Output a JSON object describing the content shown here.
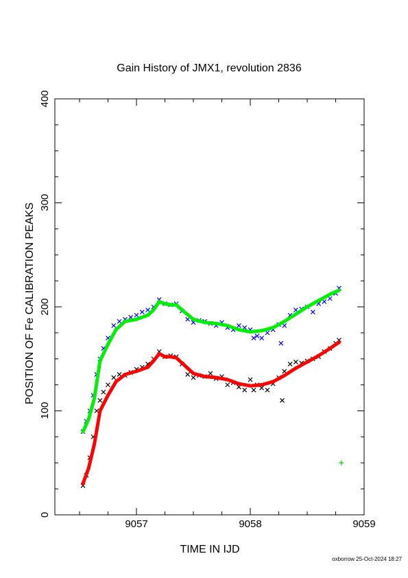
{
  "chart_data": {
    "type": "scatter",
    "title": "Gain History of JMX1, revolution 2836",
    "xlabel": "TIME IN IJD",
    "ylabel": "POSITION OF Fe CALIBRATION PEAKS",
    "xlim": [
      9056.5,
      9059
    ],
    "ylim": [
      0,
      400
    ],
    "xticks": [
      9057,
      9058,
      9059
    ],
    "xtick_labels": [
      "9057",
      "9058",
      "9059"
    ],
    "yticks": [
      0,
      100,
      200,
      300,
      400
    ],
    "ytick_labels": [
      "0",
      "100",
      "200",
      "300",
      "400"
    ],
    "grid": false,
    "legend": "none",
    "footer": "oxborrow 25-Oct-2024 18:27",
    "series": [
      {
        "marker": "x",
        "color": "#0000ff",
        "kind": "points",
        "x": [
          9056.53,
          9056.56,
          9056.59,
          9056.62,
          9056.65,
          9056.68,
          9056.71,
          9056.75,
          9056.8,
          9056.85,
          9056.9,
          9056.95,
          9057.0,
          9057.05,
          9057.1,
          9057.15,
          9057.2,
          9057.25,
          9057.3,
          9057.35,
          9057.4,
          9057.45,
          9057.5,
          9057.55,
          9057.6,
          9057.65,
          9057.7,
          9057.75,
          9057.8,
          9057.85,
          9057.9,
          9057.95,
          9058.0,
          9058.03,
          9058.06,
          9058.1,
          9058.15,
          9058.2,
          9058.25,
          9058.27,
          9058.3,
          9058.35,
          9058.4,
          9058.45,
          9058.5,
          9058.55,
          9058.6,
          9058.65,
          9058.7,
          9058.75,
          9058.78
        ],
        "y": [
          80,
          90,
          100,
          115,
          135,
          150,
          160,
          170,
          182,
          186,
          188,
          190,
          192,
          195,
          197,
          200,
          207,
          203,
          202,
          203,
          196,
          188,
          185,
          187,
          186,
          184,
          182,
          185,
          180,
          178,
          182,
          180,
          178,
          170,
          172,
          170,
          175,
          178,
          183,
          165,
          182,
          192,
          197,
          198,
          200,
          195,
          203,
          205,
          208,
          213,
          218
        ]
      },
      {
        "marker": "x",
        "color": "#000000",
        "kind": "points",
        "x": [
          9056.53,
          9056.56,
          9056.59,
          9056.62,
          9056.65,
          9056.68,
          9056.71,
          9056.75,
          9056.8,
          9056.85,
          9056.9,
          9056.95,
          9057.0,
          9057.05,
          9057.1,
          9057.15,
          9057.2,
          9057.25,
          9057.3,
          9057.35,
          9057.4,
          9057.45,
          9057.5,
          9057.55,
          9057.6,
          9057.65,
          9057.7,
          9057.75,
          9057.8,
          9057.85,
          9057.9,
          9057.95,
          9058.0,
          9058.03,
          9058.06,
          9058.1,
          9058.15,
          9058.2,
          9058.25,
          9058.28,
          9058.3,
          9058.35,
          9058.4,
          9058.45,
          9058.5,
          9058.55,
          9058.6,
          9058.65,
          9058.7,
          9058.75,
          9058.78
        ],
        "y": [
          28,
          38,
          55,
          75,
          100,
          110,
          118,
          125,
          132,
          135,
          134,
          137,
          140,
          142,
          145,
          150,
          157,
          152,
          153,
          152,
          145,
          135,
          132,
          134,
          133,
          136,
          131,
          133,
          125,
          127,
          123,
          120,
          130,
          120,
          125,
          122,
          120,
          126,
          132,
          110,
          138,
          145,
          147,
          146,
          148,
          150,
          152,
          157,
          160,
          165,
          168
        ]
      },
      {
        "marker": "curve",
        "color": "#00ee00",
        "kind": "fit",
        "x": [
          9056.53,
          9056.58,
          9056.63,
          9056.68,
          9056.75,
          9056.82,
          9056.9,
          9057.0,
          9057.1,
          9057.15,
          9057.2,
          9057.25,
          9057.3,
          9057.35,
          9057.4,
          9057.5,
          9057.6,
          9057.7,
          9057.8,
          9057.9,
          9058.0,
          9058.1,
          9058.2,
          9058.3,
          9058.4,
          9058.5,
          9058.6,
          9058.7,
          9058.78
        ],
        "y": [
          80,
          92,
          112,
          148,
          164,
          178,
          186,
          188,
          192,
          197,
          205,
          203,
          202,
          202,
          197,
          188,
          185,
          184,
          182,
          178,
          176,
          177,
          180,
          186,
          193,
          200,
          206,
          212,
          216
        ]
      },
      {
        "marker": "curve",
        "color": "#ff0000",
        "kind": "fit",
        "x": [
          9056.53,
          9056.58,
          9056.63,
          9056.68,
          9056.75,
          9056.82,
          9056.9,
          9057.0,
          9057.1,
          9057.15,
          9057.2,
          9057.25,
          9057.3,
          9057.35,
          9057.4,
          9057.5,
          9057.6,
          9057.7,
          9057.8,
          9057.9,
          9058.0,
          9058.1,
          9058.2,
          9058.3,
          9058.4,
          9058.5,
          9058.6,
          9058.7,
          9058.78
        ],
        "y": [
          30,
          45,
          68,
          100,
          115,
          128,
          135,
          138,
          142,
          148,
          155,
          152,
          152,
          151,
          146,
          136,
          133,
          132,
          130,
          126,
          124,
          125,
          128,
          134,
          141,
          147,
          153,
          160,
          166
        ]
      },
      {
        "marker": "+",
        "color": "#00cc00",
        "kind": "points",
        "x": [
          9058.8
        ],
        "y": [
          50
        ]
      }
    ]
  }
}
